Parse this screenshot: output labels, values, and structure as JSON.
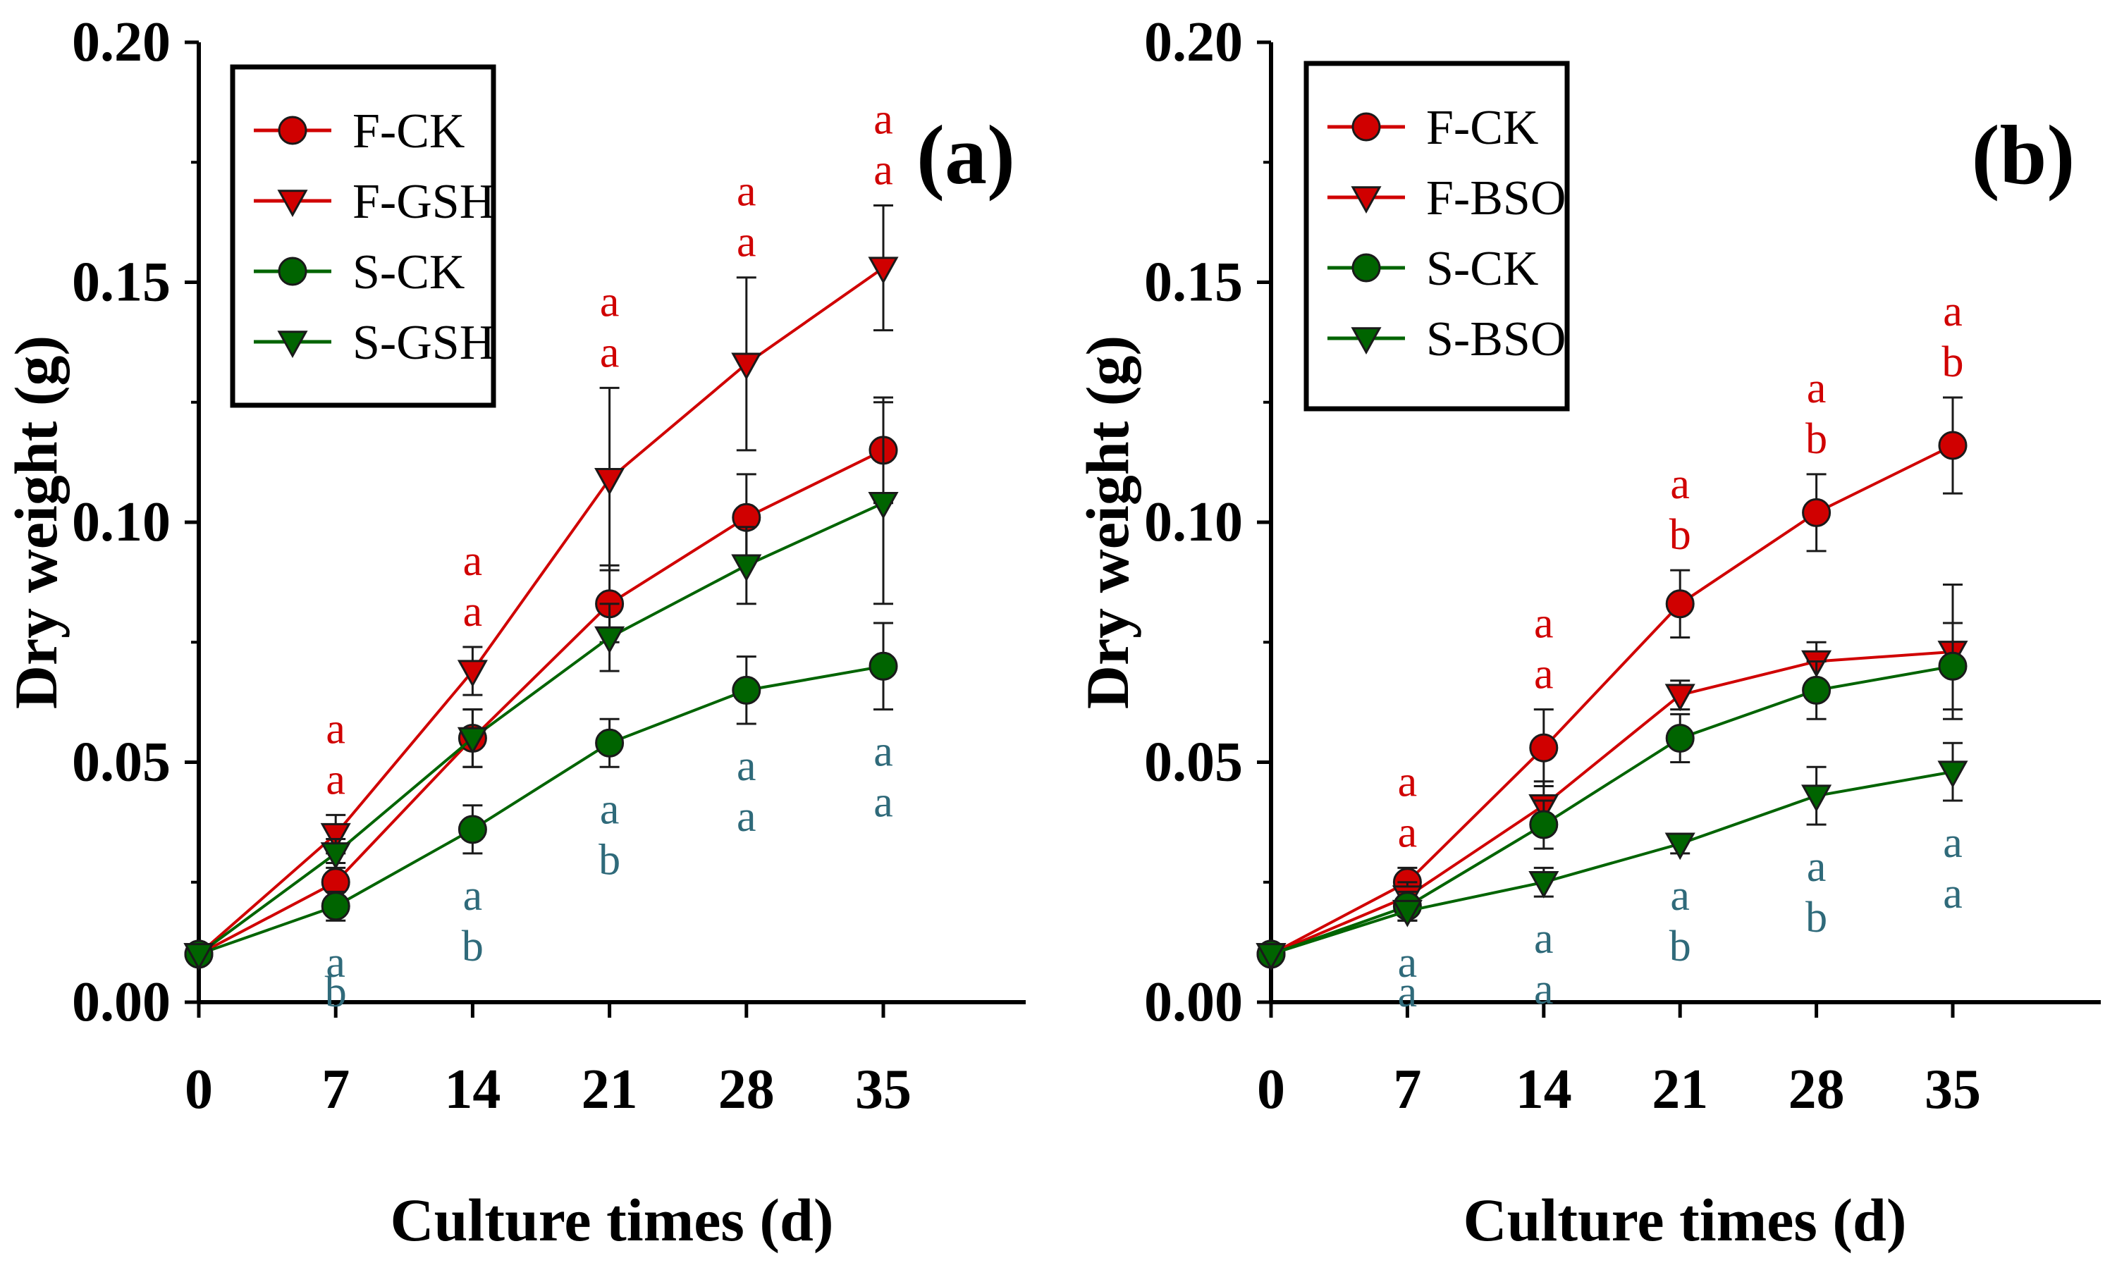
{
  "colors": {
    "red": "#d00000",
    "green": "#006400",
    "teal": "#2f6a7a",
    "axis": "#000000"
  },
  "chart_data": [
    {
      "type": "line",
      "panel_label": "(a)",
      "xlabel": "Culture times (d)",
      "ylabel": "Dry weight (g)",
      "x": [
        0,
        7,
        14,
        21,
        28,
        35
      ],
      "xlim": [
        0,
        42
      ],
      "ylim": [
        0,
        0.2
      ],
      "yticks": [
        "0.00",
        "0.05",
        "0.10",
        "0.15",
        "0.20"
      ],
      "xticks": [
        "0",
        "7",
        "14",
        "21",
        "28",
        "35"
      ],
      "legend_position": "top-left",
      "series": [
        {
          "name": "F-CK",
          "color": "#d00000",
          "marker": "circle",
          "values": [
            0.01,
            0.025,
            0.055,
            0.083,
            0.101,
            0.115
          ],
          "errors": [
            0.002,
            0.004,
            0.006,
            0.008,
            0.009,
            0.011
          ]
        },
        {
          "name": "F-GSH",
          "color": "#d00000",
          "marker": "triangle-down",
          "values": [
            0.01,
            0.035,
            0.069,
            0.109,
            0.133,
            0.153
          ],
          "errors": [
            0.002,
            0.004,
            0.005,
            0.019,
            0.018,
            0.013
          ]
        },
        {
          "name": "S-CK",
          "color": "#006400",
          "marker": "circle",
          "values": [
            0.01,
            0.02,
            0.036,
            0.054,
            0.065,
            0.07
          ],
          "errors": [
            0.002,
            0.003,
            0.005,
            0.005,
            0.007,
            0.009
          ]
        },
        {
          "name": "S-GSH",
          "color": "#006400",
          "marker": "triangle-down",
          "values": [
            0.01,
            0.031,
            0.055,
            0.076,
            0.091,
            0.104
          ],
          "errors": [
            0.002,
            0.003,
            0.006,
            0.007,
            0.008,
            0.021
          ]
        }
      ],
      "annotations": {
        "upper_color": "#d00000",
        "lower_color": "#2f6a7a",
        "upper": [
          {
            "x": 7,
            "letters": [
              "a",
              "a"
            ]
          },
          {
            "x": 14,
            "letters": [
              "a",
              "a"
            ]
          },
          {
            "x": 21,
            "letters": [
              "a",
              "a"
            ]
          },
          {
            "x": 28,
            "letters": [
              "a",
              "a"
            ]
          },
          {
            "x": 35,
            "letters": [
              "a",
              "a"
            ]
          }
        ],
        "lower": [
          {
            "x": 7,
            "letters": [
              "a",
              "b"
            ]
          },
          {
            "x": 14,
            "letters": [
              "a",
              "b"
            ]
          },
          {
            "x": 21,
            "letters": [
              "a",
              "b"
            ]
          },
          {
            "x": 28,
            "letters": [
              "a",
              "a"
            ]
          },
          {
            "x": 35,
            "letters": [
              "a",
              "a"
            ]
          }
        ]
      }
    },
    {
      "type": "line",
      "panel_label": "(b)",
      "xlabel": "Culture times (d)",
      "ylabel": "Dry weight (g)",
      "x": [
        0,
        7,
        14,
        21,
        28,
        35
      ],
      "xlim": [
        0,
        42
      ],
      "ylim": [
        0,
        0.2
      ],
      "yticks": [
        "0.00",
        "0.05",
        "0.10",
        "0.15",
        "0.20"
      ],
      "xticks": [
        "0",
        "7",
        "14",
        "21",
        "28",
        "35"
      ],
      "legend_position": "top-left",
      "series": [
        {
          "name": "F-CK",
          "color": "#d00000",
          "marker": "circle",
          "values": [
            0.01,
            0.025,
            0.053,
            0.083,
            0.102,
            0.116
          ],
          "errors": [
            0.002,
            0.003,
            0.008,
            0.007,
            0.008,
            0.01
          ]
        },
        {
          "name": "F-BSO",
          "color": "#d00000",
          "marker": "triangle-down",
          "values": [
            0.01,
            0.022,
            0.041,
            0.064,
            0.071,
            0.073
          ],
          "errors": [
            0.002,
            0.003,
            0.005,
            0.003,
            0.004,
            0.014
          ]
        },
        {
          "name": "S-CK",
          "color": "#006400",
          "marker": "circle",
          "values": [
            0.01,
            0.02,
            0.037,
            0.055,
            0.065,
            0.07
          ],
          "errors": [
            0.002,
            0.003,
            0.005,
            0.005,
            0.006,
            0.009
          ]
        },
        {
          "name": "S-BSO",
          "color": "#006400",
          "marker": "triangle-down",
          "values": [
            0.01,
            0.019,
            0.025,
            0.033,
            0.043,
            0.048
          ],
          "errors": [
            0.002,
            0.002,
            0.003,
            0.002,
            0.006,
            0.006
          ]
        }
      ],
      "annotations": {
        "upper_color": "#d00000",
        "lower_color": "#2f6a7a",
        "upper": [
          {
            "x": 7,
            "letters": [
              "a",
              "a"
            ]
          },
          {
            "x": 14,
            "letters": [
              "a",
              "a"
            ]
          },
          {
            "x": 21,
            "letters": [
              "a",
              "b"
            ]
          },
          {
            "x": 28,
            "letters": [
              "a",
              "b"
            ]
          },
          {
            "x": 35,
            "letters": [
              "a",
              "b"
            ]
          }
        ],
        "lower": [
          {
            "x": 7,
            "letters": [
              "a",
              "a"
            ]
          },
          {
            "x": 14,
            "letters": [
              "a",
              "a"
            ]
          },
          {
            "x": 21,
            "letters": [
              "a",
              "b"
            ]
          },
          {
            "x": 28,
            "letters": [
              "a",
              "b"
            ]
          },
          {
            "x": 35,
            "letters": [
              "a",
              "a"
            ]
          }
        ]
      }
    }
  ]
}
